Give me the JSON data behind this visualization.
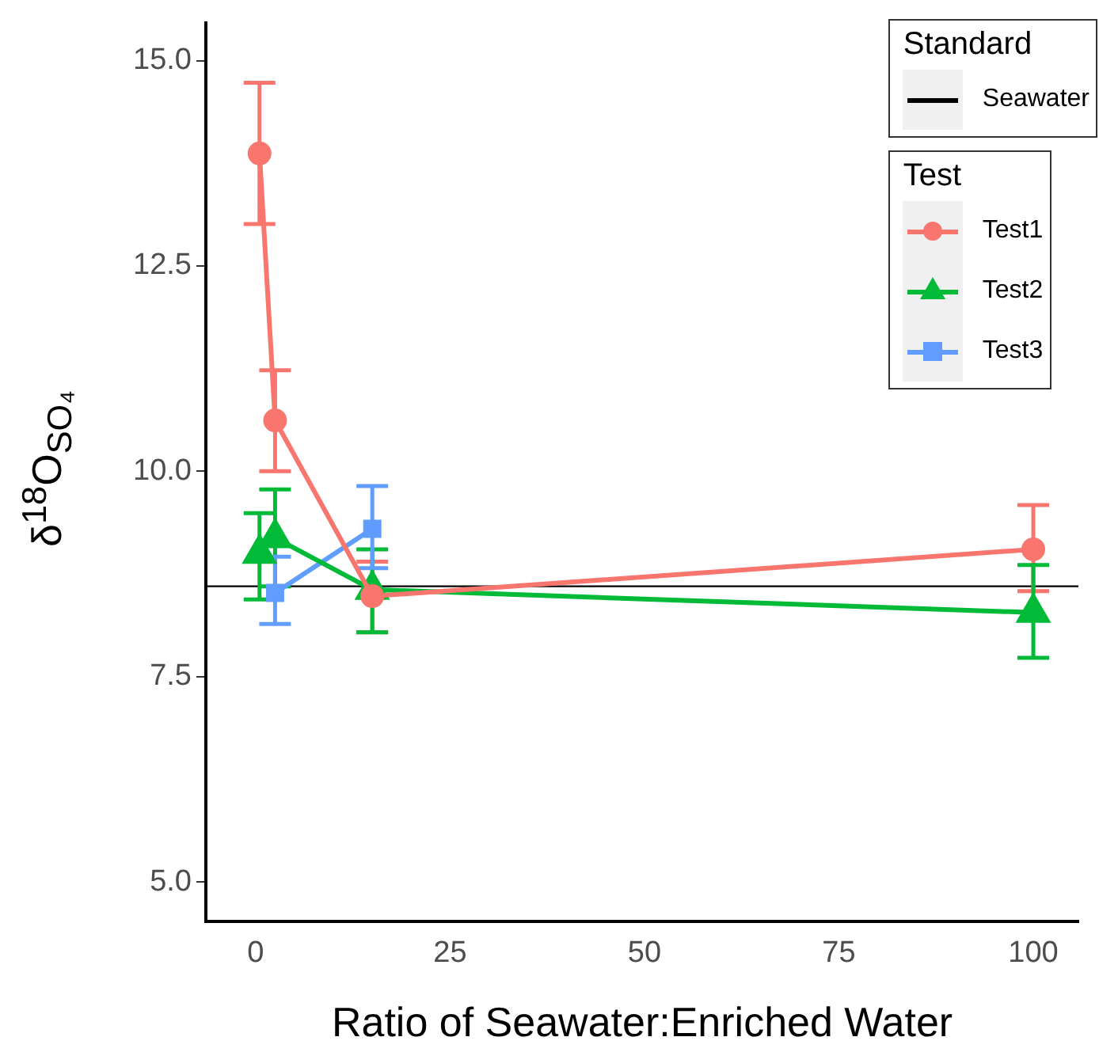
{
  "chart_data": {
    "type": "line",
    "xlabel": "Ratio of Seawater:Enriched Water",
    "ylabel": "δ$^{18}$O$_{SO₄}$",
    "xlim": [
      -6.4,
      105.8
    ],
    "xticks": [
      0,
      25,
      50,
      75,
      100
    ],
    "ylim": [
      4.52,
      15.46
    ],
    "yticks": [
      {
        "value": 5,
        "label": "5.0"
      },
      {
        "value": 7.5,
        "label": "7.5"
      },
      {
        "value": 10,
        "label": "10.0"
      },
      {
        "value": 12.5,
        "label": "12.5"
      },
      {
        "value": 15,
        "label": "15.0"
      }
    ],
    "grid": false,
    "legend": "top right",
    "legend_title": "Test",
    "annotations": [
      "Standard"
    ],
    "ref_lines": [
      {
        "axis": "y",
        "value": 8.6,
        "label": "Seawater",
        "color": "#000000"
      }
    ],
    "series": [
      {
        "name": "Test1",
        "color": "#f8766d",
        "marker": "circle",
        "x": [
          0.5,
          2.5,
          15,
          100
        ],
        "values": [
          13.87,
          10.62,
          8.48,
          9.05
        ],
        "errors": [
          [
            13.01,
            14.73
          ],
          [
            10.0,
            11.23
          ],
          [
            8.04,
            8.9
          ],
          [
            8.54,
            9.59
          ]
        ]
      },
      {
        "name": "Test2",
        "color": "#00ba38",
        "marker": "triangle",
        "x": [
          0.5,
          2.5,
          15,
          100
        ],
        "values": [
          9.0,
          9.19,
          8.56,
          8.28
        ],
        "errors": [
          [
            8.44,
            9.49
          ],
          [
            8.6,
            9.78
          ],
          [
            8.04,
            9.05
          ],
          [
            7.73,
            8.86
          ]
        ]
      },
      {
        "name": "Test3",
        "color": "#619cff",
        "marker": "square",
        "x": [
          2.5,
          15
        ],
        "values": [
          8.52,
          9.3
        ],
        "errors": [
          [
            8.14,
            8.96
          ],
          [
            8.82,
            9.82
          ]
        ]
      }
    ]
  }
}
